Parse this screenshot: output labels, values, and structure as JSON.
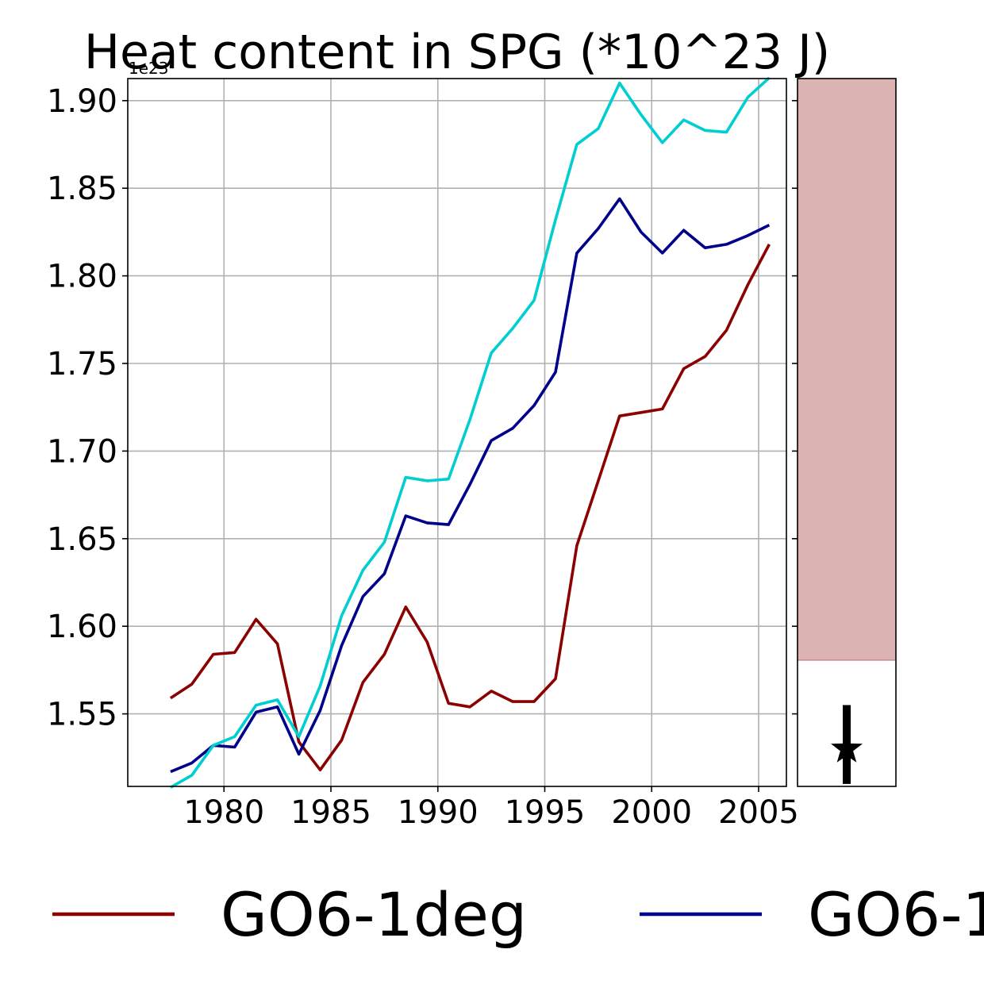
{
  "chart_data": {
    "type": "line",
    "title": "Heat content in SPG (*10^23 J)",
    "offset_label": "1e23",
    "xlabel": "",
    "ylabel": "",
    "xlim": [
      1975.5,
      2006.3
    ],
    "ylim": [
      1.5086,
      1.9126
    ],
    "x_ticks": [
      1980,
      1985,
      1990,
      1995,
      2000,
      2005
    ],
    "y_ticks": [
      1.55,
      1.6,
      1.65,
      1.7,
      1.75,
      1.8,
      1.85,
      1.9
    ],
    "y_tick_labels": [
      "1.55",
      "1.60",
      "1.65",
      "1.70",
      "1.75",
      "1.80",
      "1.85",
      "1.90"
    ],
    "grid": true,
    "x": [
      1977.5,
      1978.5,
      1979.5,
      1980.5,
      1981.5,
      1982.5,
      1983.5,
      1984.5,
      1985.5,
      1986.5,
      1987.5,
      1988.5,
      1989.5,
      1990.5,
      1991.5,
      1992.5,
      1993.5,
      1994.5,
      1995.5,
      1996.5,
      1997.5,
      1998.5,
      1999.5,
      2000.5,
      2001.5,
      2002.5,
      2003.5,
      2004.5,
      2005.5
    ],
    "series": [
      {
        "name": "GO6-1deg",
        "color": "#8b0000",
        "values": [
          1.559,
          1.567,
          1.584,
          1.585,
          1.604,
          1.59,
          1.534,
          1.518,
          1.535,
          1.568,
          1.584,
          1.611,
          1.591,
          1.556,
          1.554,
          1.563,
          1.557,
          1.557,
          1.57,
          1.646,
          1.683,
          1.72,
          1.722,
          1.724,
          1.747,
          1.754,
          1.769,
          1.795,
          1.818
        ]
      },
      {
        "name": "GO6-1",
        "color": "#00008b",
        "values": [
          1.517,
          1.522,
          1.532,
          1.531,
          1.551,
          1.554,
          1.527,
          1.552,
          1.589,
          1.617,
          1.63,
          1.663,
          1.659,
          1.658,
          1.681,
          1.706,
          1.713,
          1.726,
          1.745,
          1.813,
          1.827,
          1.844,
          1.825,
          1.813,
          1.826,
          1.816,
          1.818,
          1.823,
          1.829
        ]
      },
      {
        "name": "",
        "color": "#00ced1",
        "values": [
          1.508,
          1.515,
          1.532,
          1.537,
          1.555,
          1.558,
          1.537,
          1.566,
          1.606,
          1.632,
          1.648,
          1.685,
          1.683,
          1.684,
          1.718,
          1.756,
          1.77,
          1.786,
          1.832,
          1.875,
          1.884,
          1.91,
          1.892,
          1.876,
          1.889,
          1.883,
          1.882,
          1.902,
          1.913
        ]
      }
    ],
    "side_panel": {
      "band_color": "#dbb3b3",
      "band_edge_color": "#c98d8d",
      "band_range": [
        1.5807,
        1.9126
      ],
      "marker": "star",
      "marker_value": 1.53,
      "error_range": [
        1.51,
        1.555
      ],
      "marker_color": "#000000"
    },
    "legend": {
      "placement": "bottom",
      "entries": [
        {
          "label": "GO6-1deg",
          "color": "#8b0000"
        },
        {
          "label": "GO6-1",
          "color": "#00008b"
        }
      ]
    }
  }
}
